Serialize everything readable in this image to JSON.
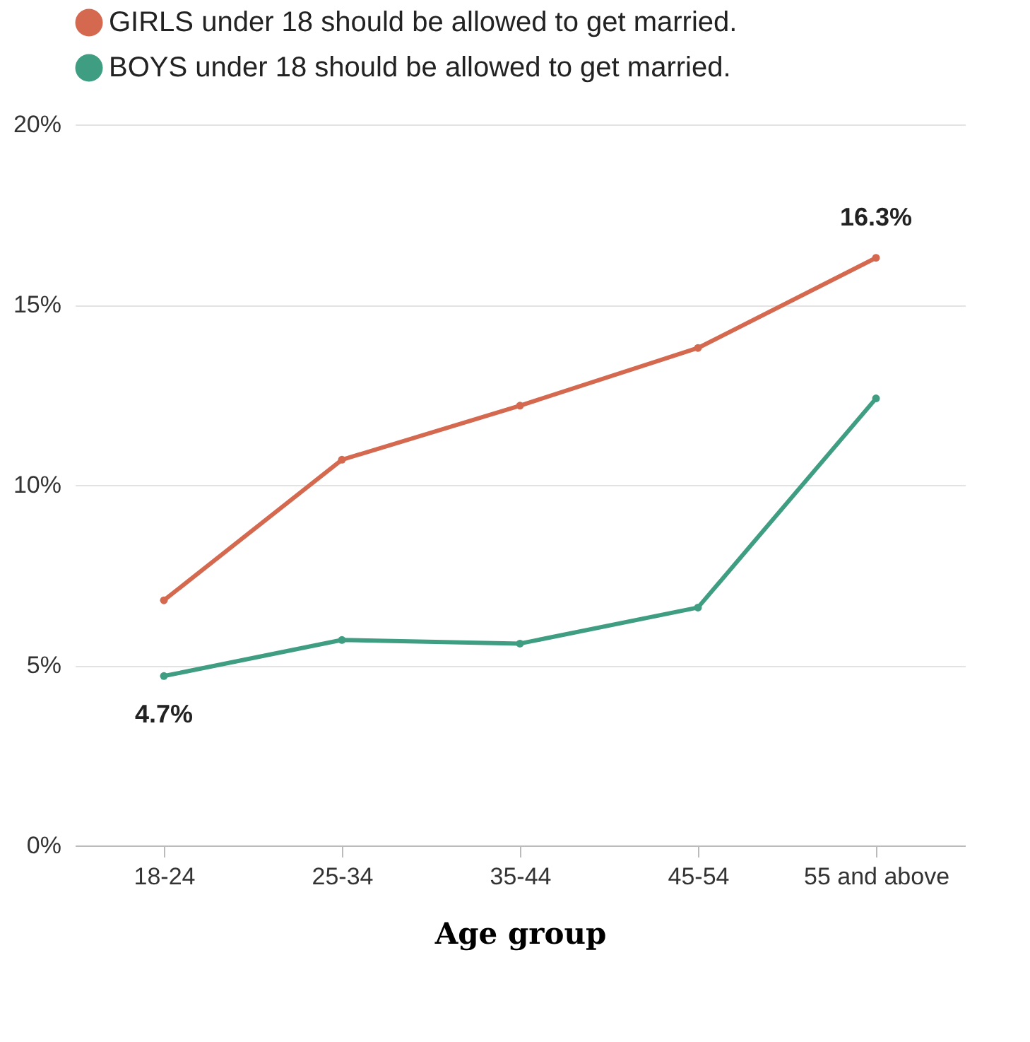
{
  "chart_data": {
    "type": "line",
    "xlabel": "Age group",
    "categories": [
      "18-24",
      "25-34",
      "35-44",
      "45-54",
      "55 and above"
    ],
    "series": [
      {
        "name": "GIRLS under 18 should be allowed to get married.",
        "color": "#d4694f",
        "values": [
          6.8,
          10.7,
          12.2,
          13.8,
          16.3
        ],
        "value_labels": [
          null,
          null,
          null,
          null,
          "16.3%"
        ]
      },
      {
        "name": "BOYS under 18 should be allowed to get married.",
        "color": "#3f9e82",
        "values": [
          4.7,
          5.7,
          5.6,
          6.6,
          12.4
        ],
        "value_labels": [
          "4.7%",
          null,
          null,
          null,
          null
        ]
      }
    ],
    "ylim": [
      0,
      20
    ],
    "yticks": [
      {
        "value": 0,
        "label": "0%"
      },
      {
        "value": 5,
        "label": "5%"
      },
      {
        "value": 10,
        "label": "10%"
      },
      {
        "value": 15,
        "label": "15%"
      },
      {
        "value": 20,
        "label": "20%"
      }
    ],
    "grid": "y",
    "legend": "top left",
    "marker": "circle",
    "line_style": "solid"
  }
}
